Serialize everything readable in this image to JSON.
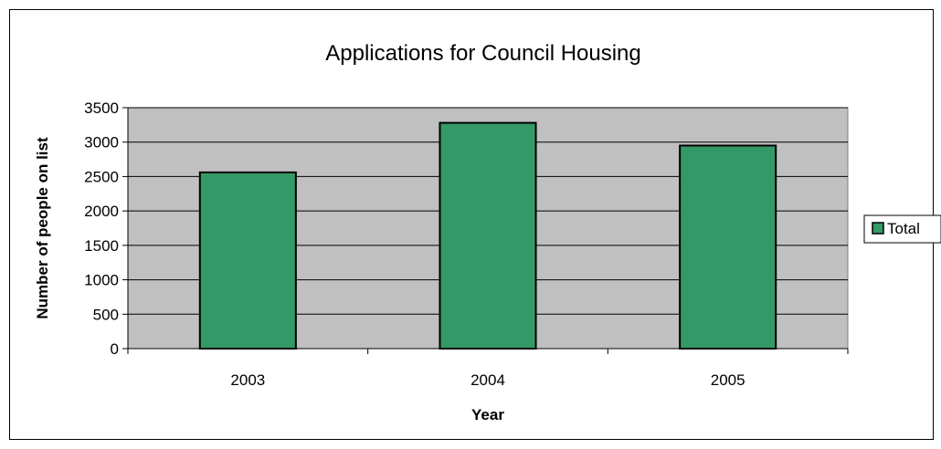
{
  "chart_data": {
    "type": "bar",
    "title": "Applications for Council Housing",
    "xlabel": "Year",
    "ylabel": "Number of people on list",
    "categories": [
      "2003",
      "2004",
      "2005"
    ],
    "series": [
      {
        "name": "Total",
        "values": [
          2560,
          3280,
          2950
        ],
        "color": "#339966"
      }
    ],
    "ylim": [
      0,
      3500
    ],
    "yticks": [
      0,
      500,
      1000,
      1500,
      2000,
      2500,
      3000,
      3500
    ],
    "grid": true,
    "legend": "right",
    "plot_background": "#c0c0c0"
  }
}
